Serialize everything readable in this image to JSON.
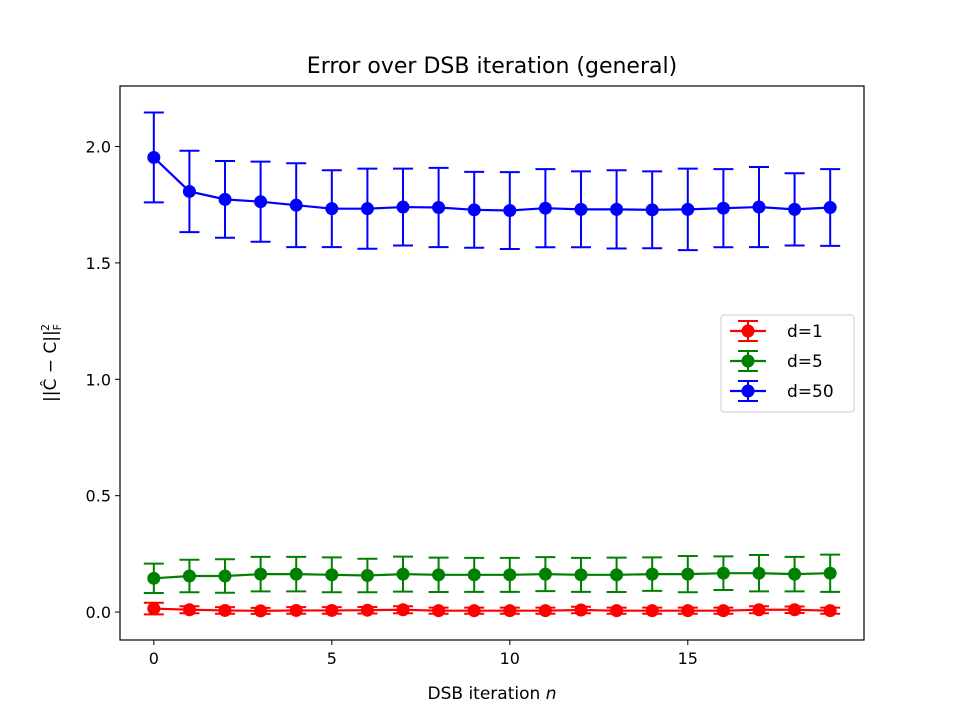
{
  "chart_data": {
    "type": "line",
    "title": "Error over DSB iteration (general)",
    "xlabel": "DSB iteration",
    "xlabel_var": "n",
    "ylabel": "||Ĉ − C||",
    "ylabel_sub": "F",
    "ylabel_sup": "2",
    "xlim": [
      -0.95,
      19.95
    ],
    "ylim": [
      -0.12,
      2.26
    ],
    "xticks": [
      0,
      5,
      10,
      15
    ],
    "yticks": [
      0.0,
      0.5,
      1.0,
      1.5,
      2.0
    ],
    "ytick_labels": [
      "0.0",
      "0.5",
      "1.0",
      "1.5",
      "2.0"
    ],
    "grid": false,
    "legend_position": "center-right",
    "x": [
      0,
      1,
      2,
      3,
      4,
      5,
      6,
      7,
      8,
      9,
      10,
      11,
      12,
      13,
      14,
      15,
      16,
      17,
      18,
      19
    ],
    "series": [
      {
        "name": "d=1",
        "color": "#ff0000",
        "values": [
          0.015,
          0.01,
          0.007,
          0.005,
          0.007,
          0.007,
          0.008,
          0.01,
          0.006,
          0.006,
          0.006,
          0.006,
          0.009,
          0.006,
          0.006,
          0.006,
          0.006,
          0.01,
          0.01,
          0.006
        ],
        "errors": [
          0.025,
          0.015,
          0.014,
          0.013,
          0.014,
          0.014,
          0.014,
          0.015,
          0.013,
          0.013,
          0.013,
          0.013,
          0.014,
          0.013,
          0.013,
          0.013,
          0.013,
          0.015,
          0.014,
          0.013
        ]
      },
      {
        "name": "d=5",
        "color": "#008000",
        "values": [
          0.145,
          0.155,
          0.155,
          0.163,
          0.163,
          0.16,
          0.157,
          0.163,
          0.16,
          0.16,
          0.16,
          0.163,
          0.16,
          0.16,
          0.163,
          0.163,
          0.167,
          0.167,
          0.163,
          0.167
        ],
        "errors": [
          0.063,
          0.07,
          0.072,
          0.074,
          0.074,
          0.075,
          0.072,
          0.075,
          0.074,
          0.073,
          0.073,
          0.073,
          0.073,
          0.074,
          0.072,
          0.078,
          0.072,
          0.078,
          0.074,
          0.08
        ]
      },
      {
        "name": "d=50",
        "color": "#0000ff",
        "values": [
          1.953,
          1.807,
          1.773,
          1.763,
          1.748,
          1.733,
          1.733,
          1.74,
          1.738,
          1.728,
          1.725,
          1.735,
          1.73,
          1.73,
          1.728,
          1.73,
          1.735,
          1.74,
          1.73,
          1.738
        ],
        "errors": [
          0.193,
          0.175,
          0.165,
          0.172,
          0.18,
          0.165,
          0.172,
          0.165,
          0.17,
          0.163,
          0.165,
          0.168,
          0.163,
          0.168,
          0.165,
          0.175,
          0.168,
          0.172,
          0.155,
          0.165
        ]
      }
    ]
  }
}
